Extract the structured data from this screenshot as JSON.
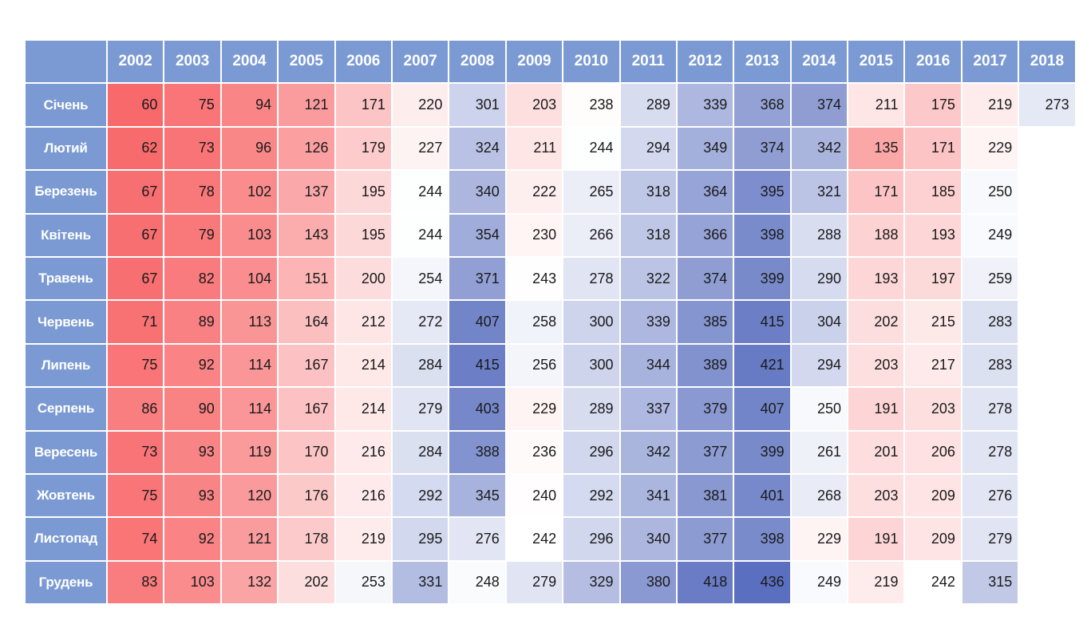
{
  "chart_data": {
    "type": "heatmap",
    "title": "",
    "xlabel": "",
    "ylabel": "",
    "color_scale": {
      "low": "#f8696b",
      "mid": "#ffffff",
      "high": "#5a6fbf"
    },
    "header_color": "#7b9ad3",
    "columns": [
      "2002",
      "2003",
      "2004",
      "2005",
      "2006",
      "2007",
      "2008",
      "2009",
      "2010",
      "2011",
      "2012",
      "2013",
      "2014",
      "2015",
      "2016",
      "2017",
      "2018"
    ],
    "rows": [
      "Січень",
      "Лютий",
      "Березень",
      "Квітень",
      "Травень",
      "Червень",
      "Липень",
      "Серпень",
      "Вересень",
      "Жовтень",
      "Листопад",
      "Грудень"
    ],
    "values": [
      [
        60,
        75,
        94,
        121,
        171,
        220,
        301,
        203,
        238,
        289,
        339,
        368,
        374,
        211,
        175,
        219,
        273
      ],
      [
        62,
        73,
        96,
        126,
        179,
        227,
        324,
        211,
        244,
        294,
        349,
        374,
        342,
        135,
        171,
        229,
        null
      ],
      [
        67,
        78,
        102,
        137,
        195,
        244,
        340,
        222,
        265,
        318,
        364,
        395,
        321,
        171,
        185,
        250,
        null
      ],
      [
        67,
        79,
        103,
        143,
        195,
        244,
        354,
        230,
        266,
        318,
        366,
        398,
        288,
        188,
        193,
        249,
        null
      ],
      [
        67,
        82,
        104,
        151,
        200,
        254,
        371,
        243,
        278,
        322,
        374,
        399,
        290,
        193,
        197,
        259,
        null
      ],
      [
        71,
        89,
        113,
        164,
        212,
        272,
        407,
        258,
        300,
        339,
        385,
        415,
        304,
        202,
        215,
        283,
        null
      ],
      [
        75,
        92,
        114,
        167,
        214,
        284,
        415,
        256,
        300,
        344,
        389,
        421,
        294,
        203,
        217,
        283,
        null
      ],
      [
        86,
        90,
        114,
        167,
        214,
        279,
        403,
        229,
        289,
        337,
        379,
        407,
        250,
        191,
        203,
        278,
        null
      ],
      [
        73,
        93,
        119,
        170,
        216,
        284,
        388,
        236,
        296,
        342,
        377,
        399,
        261,
        201,
        206,
        278,
        null
      ],
      [
        75,
        93,
        120,
        176,
        216,
        292,
        345,
        240,
        292,
        341,
        381,
        401,
        268,
        203,
        209,
        276,
        null
      ],
      [
        74,
        92,
        121,
        178,
        219,
        295,
        276,
        242,
        296,
        340,
        377,
        398,
        229,
        191,
        209,
        279,
        null
      ],
      [
        83,
        103,
        132,
        202,
        253,
        331,
        248,
        279,
        329,
        380,
        418,
        436,
        249,
        219,
        242,
        315,
        null
      ]
    ]
  }
}
